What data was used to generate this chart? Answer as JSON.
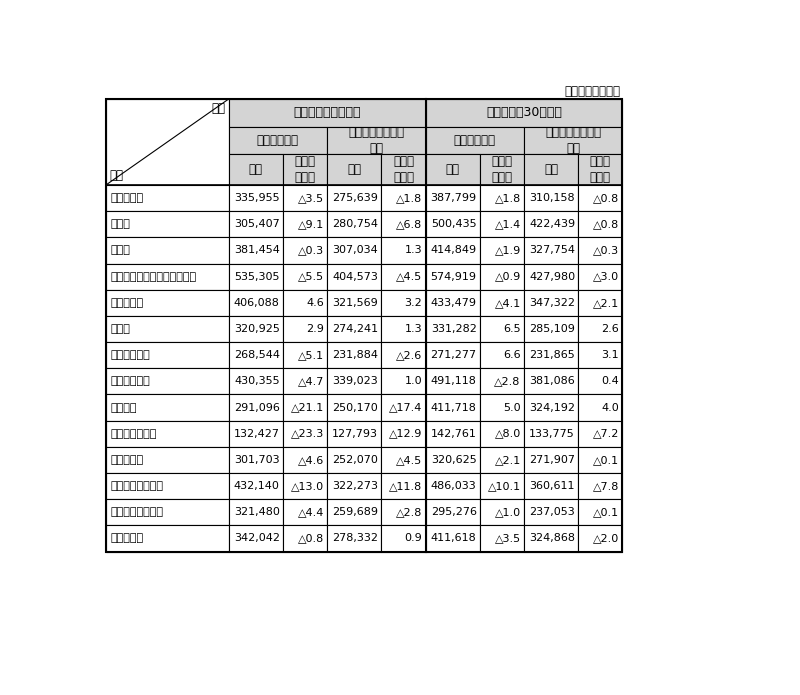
{
  "title_note": "（単位：円，％）",
  "col1_header": "区分",
  "col1_subheader": "産業",
  "group1_label": "事業所規模５人以上",
  "group2_label": "事業所規模30人以上",
  "subgroup_labels": [
    "現金給与総額",
    "きまって支給する\n給与",
    "現金給与総額",
    "きまって支給する\n給与"
  ],
  "col_labels": [
    "実数",
    "対前年\n増減率",
    "実数",
    "対前年\n増減率",
    "実数",
    "対前年\n増減率",
    "実数",
    "対前年\n増減率"
  ],
  "rows": [
    [
      "調査産業計",
      "335,955",
      "△3.5",
      "275,639",
      "△1.8",
      "387,799",
      "△1.8",
      "310,158",
      "△0.8"
    ],
    [
      "建設業",
      "305,407",
      "△9.1",
      "280,754",
      "△6.8",
      "500,435",
      "△1.4",
      "422,439",
      "△0.8"
    ],
    [
      "製造業",
      "381,454",
      "△0.3",
      "307,034",
      "1.3",
      "414,849",
      "△1.9",
      "327,754",
      "△0.3"
    ],
    [
      "電気・ガス・熱供給・水道業",
      "535,305",
      "△5.5",
      "404,573",
      "△4.5",
      "574,919",
      "△0.9",
      "427,980",
      "△3.0"
    ],
    [
      "情報通信業",
      "406,088",
      "4.6",
      "321,569",
      "3.2",
      "433,479",
      "△4.1",
      "347,322",
      "△2.1"
    ],
    [
      "運輸業",
      "320,925",
      "2.9",
      "274,241",
      "1.3",
      "331,282",
      "6.5",
      "285,109",
      "2.6"
    ],
    [
      "卸売・小売業",
      "268,544",
      "△5.1",
      "231,884",
      "△2.6",
      "271,277",
      "6.6",
      "231,865",
      "3.1"
    ],
    [
      "金融・保険業",
      "430,355",
      "△4.7",
      "339,023",
      "1.0",
      "491,118",
      "△2.8",
      "381,086",
      "0.4"
    ],
    [
      "不動産業",
      "291,096",
      "△21.1",
      "250,170",
      "△17.4",
      "411,718",
      "5.0",
      "324,192",
      "4.0"
    ],
    [
      "飲食店・宿泊業",
      "132,427",
      "△23.3",
      "127,793",
      "△12.9",
      "142,761",
      "△8.0",
      "133,775",
      "△7.2"
    ],
    [
      "医療・福祉",
      "301,703",
      "△4.6",
      "252,070",
      "△4.5",
      "320,625",
      "△2.1",
      "271,907",
      "△0.1"
    ],
    [
      "教育・学習支援業",
      "432,140",
      "△13.0",
      "322,273",
      "△11.8",
      "486,033",
      "△10.1",
      "360,611",
      "△7.8"
    ],
    [
      "複合サービス事業",
      "321,480",
      "△4.4",
      "259,689",
      "△2.8",
      "295,276",
      "△1.0",
      "237,053",
      "△0.1"
    ],
    [
      "サービス業",
      "342,042",
      "△0.8",
      "278,332",
      "0.9",
      "411,618",
      "△3.5",
      "324,868",
      "△2.0"
    ]
  ],
  "bg_color": "#ffffff",
  "header_bg": "#d4d4d4",
  "border_color": "#000000",
  "font_size": 8.0,
  "header_font_size": 8.5
}
